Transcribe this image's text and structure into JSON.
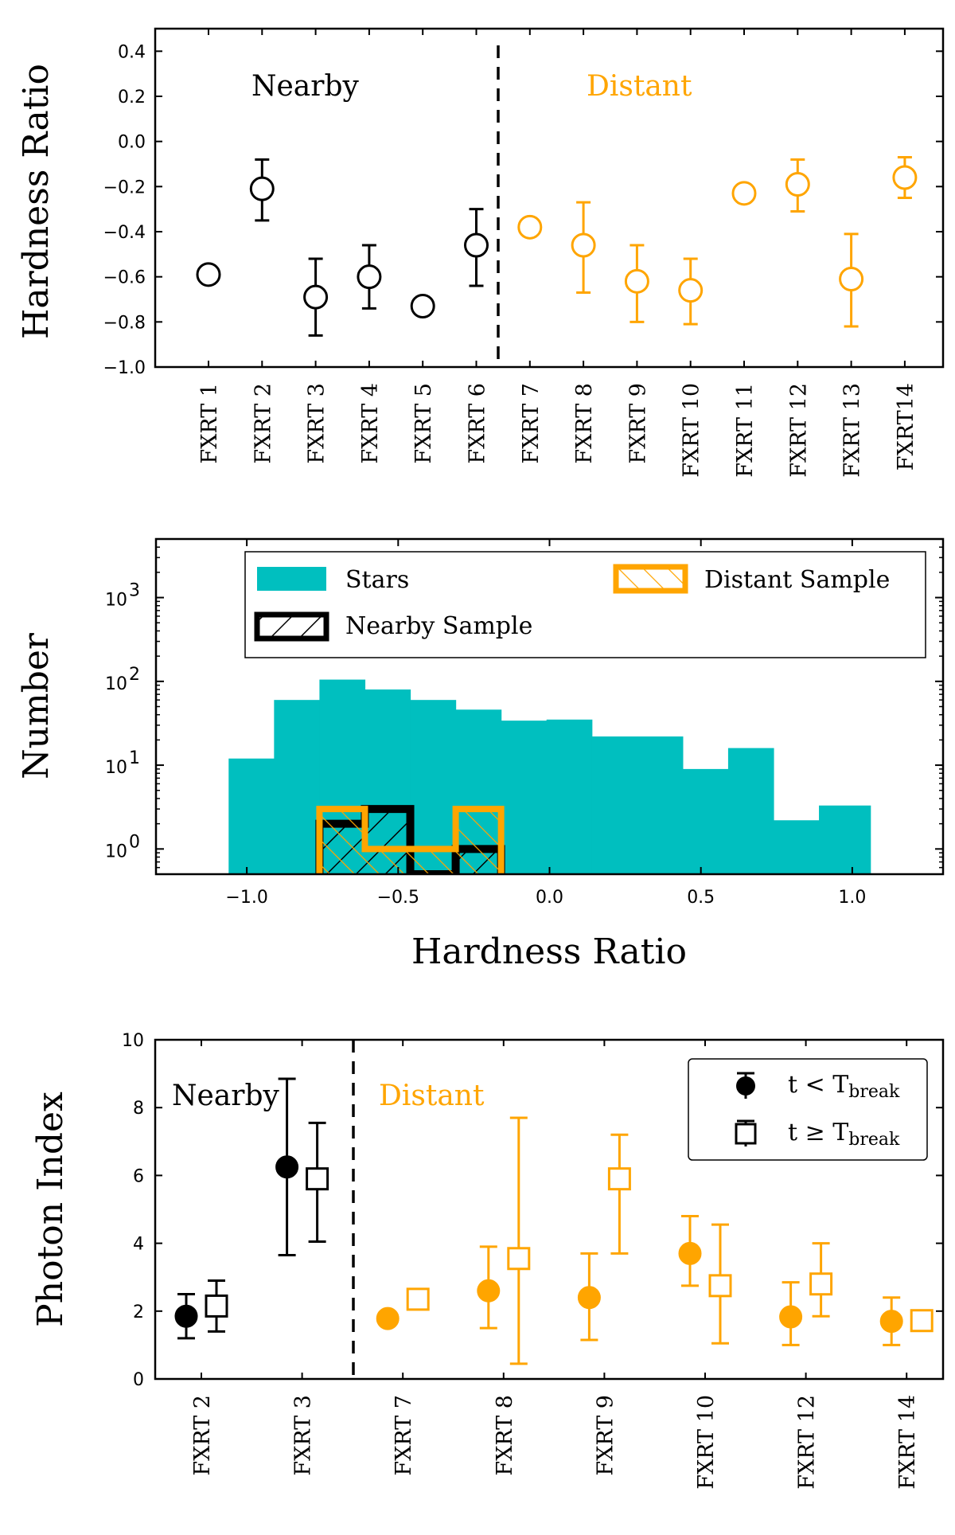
{
  "colors": {
    "nearby": "#000000",
    "distant": "#FFA500",
    "stars": "#00BFBF"
  },
  "chart_data": [
    {
      "type": "scatter",
      "ylabel": "Hardness Ratio",
      "ylim": [
        -1.0,
        0.5
      ],
      "yticks": [
        "0.4",
        "0.2",
        "0.0",
        "−0.2",
        "−0.4",
        "−0.6",
        "−0.8",
        "−1.0"
      ],
      "ytick_values": [
        0.4,
        0.2,
        0.0,
        -0.2,
        -0.4,
        -0.6,
        -0.8,
        -1.0
      ],
      "region_labels": [
        "Nearby",
        "Distant"
      ],
      "categories": [
        "FXRT 1",
        "FXRT 2",
        "FXRT 3",
        "FXRT 4",
        "FXRT 5",
        "FXRT 6",
        "FXRT 7",
        "FXRT 8",
        "FXRT 9",
        "FXRT 10",
        "FXRT 11",
        "FXRT 12",
        "FXRT 13",
        "FXRT14"
      ],
      "points": [
        {
          "y": -0.59,
          "lo": -0.63,
          "hi": -0.55,
          "group": "nearby"
        },
        {
          "y": -0.21,
          "lo": -0.35,
          "hi": -0.08,
          "group": "nearby"
        },
        {
          "y": -0.69,
          "lo": -0.86,
          "hi": -0.52,
          "group": "nearby"
        },
        {
          "y": -0.6,
          "lo": -0.74,
          "hi": -0.46,
          "group": "nearby"
        },
        {
          "y": -0.73,
          "lo": -0.76,
          "hi": -0.69,
          "group": "nearby"
        },
        {
          "y": -0.46,
          "lo": -0.64,
          "hi": -0.3,
          "group": "nearby"
        },
        {
          "y": -0.38,
          "lo": -0.42,
          "hi": -0.34,
          "group": "distant"
        },
        {
          "y": -0.46,
          "lo": -0.67,
          "hi": -0.27,
          "group": "distant"
        },
        {
          "y": -0.62,
          "lo": -0.8,
          "hi": -0.46,
          "group": "distant"
        },
        {
          "y": -0.66,
          "lo": -0.81,
          "hi": -0.52,
          "group": "distant"
        },
        {
          "y": -0.23,
          "lo": -0.27,
          "hi": -0.19,
          "group": "distant"
        },
        {
          "y": -0.19,
          "lo": -0.31,
          "hi": -0.08,
          "group": "distant"
        },
        {
          "y": -0.61,
          "lo": -0.82,
          "hi": -0.41,
          "group": "distant"
        },
        {
          "y": -0.16,
          "lo": -0.25,
          "hi": -0.07,
          "group": "distant"
        }
      ]
    },
    {
      "type": "bar",
      "xlabel": "Hardness Ratio",
      "ylabel": "Number",
      "yscale": "log",
      "xlim": [
        -1.3,
        1.3
      ],
      "xticks": [
        "−1.0",
        "−0.5",
        "0.0",
        "0.5",
        "1.0"
      ],
      "xtick_values": [
        -1.0,
        -0.5,
        0.0,
        0.5,
        1.0
      ],
      "yticks": [
        "10",
        "10",
        "10",
        "10"
      ],
      "ytick_exponents": [
        "0",
        "1",
        "2",
        "3"
      ],
      "ytick_values": [
        1,
        10,
        100,
        1000
      ],
      "legend": {
        "position": "top",
        "stars": "Stars",
        "nearby": "Nearby Sample",
        "distant": "Distant Sample"
      },
      "series": [
        {
          "name": "Stars",
          "edges": [
            -1.06,
            -0.91,
            -0.76,
            -0.61,
            -0.46,
            -0.31,
            -0.16,
            -0.01,
            0.14,
            0.29,
            0.44,
            0.59,
            0.74,
            0.89,
            1.06
          ],
          "values": [
            12,
            60,
            105,
            80,
            60,
            46,
            34,
            35,
            22,
            22,
            9,
            16,
            2.2,
            3.3
          ]
        },
        {
          "name": "Nearby Sample",
          "edges": [
            -0.76,
            -0.61,
            -0.46,
            -0.31,
            -0.16
          ],
          "values": [
            2,
            3,
            0,
            1
          ]
        },
        {
          "name": "Distant Sample",
          "edges": [
            -0.76,
            -0.61,
            -0.46,
            -0.31,
            -0.16
          ],
          "values": [
            3,
            1,
            1,
            3
          ]
        }
      ]
    },
    {
      "type": "scatter",
      "ylabel": "Photon Index",
      "ylim": [
        0,
        10
      ],
      "yticks": [
        "0",
        "2",
        "4",
        "6",
        "8",
        "10"
      ],
      "ytick_values": [
        0,
        2,
        4,
        6,
        8,
        10
      ],
      "region_labels": [
        "Nearby",
        "Distant"
      ],
      "legend": {
        "position": "top-right",
        "before": {
          "prefix": "t < T",
          "sub": "break"
        },
        "after": {
          "prefix": "t ≥ T",
          "sub": "break"
        }
      },
      "categories": [
        "FXRT 2",
        "FXRT 3",
        "FXRT 7",
        "FXRT 8",
        "FXRT 9",
        "FXRT 10",
        "FXRT 12",
        "FXRT 14"
      ],
      "groups": [
        "nearby",
        "nearby",
        "distant",
        "distant",
        "distant",
        "distant",
        "distant",
        "distant"
      ],
      "series": [
        {
          "name": "t < T_break",
          "values": [
            1.85,
            6.25,
            1.78,
            2.6,
            2.4,
            3.7,
            1.83,
            1.7
          ],
          "lo": [
            1.2,
            3.65,
            1.78,
            1.5,
            1.15,
            2.75,
            1.0,
            1.0
          ],
          "hi": [
            2.5,
            8.85,
            1.78,
            3.9,
            3.7,
            4.8,
            2.85,
            2.4
          ]
        },
        {
          "name": "t ≥ T_break",
          "values": [
            2.15,
            5.9,
            2.35,
            3.55,
            5.9,
            2.75,
            2.8,
            1.72
          ],
          "lo": [
            1.4,
            4.05,
            2.35,
            0.45,
            3.7,
            1.05,
            1.85,
            1.72
          ],
          "hi": [
            2.9,
            7.55,
            2.35,
            7.7,
            7.2,
            4.55,
            4.0,
            1.72
          ]
        }
      ]
    }
  ]
}
